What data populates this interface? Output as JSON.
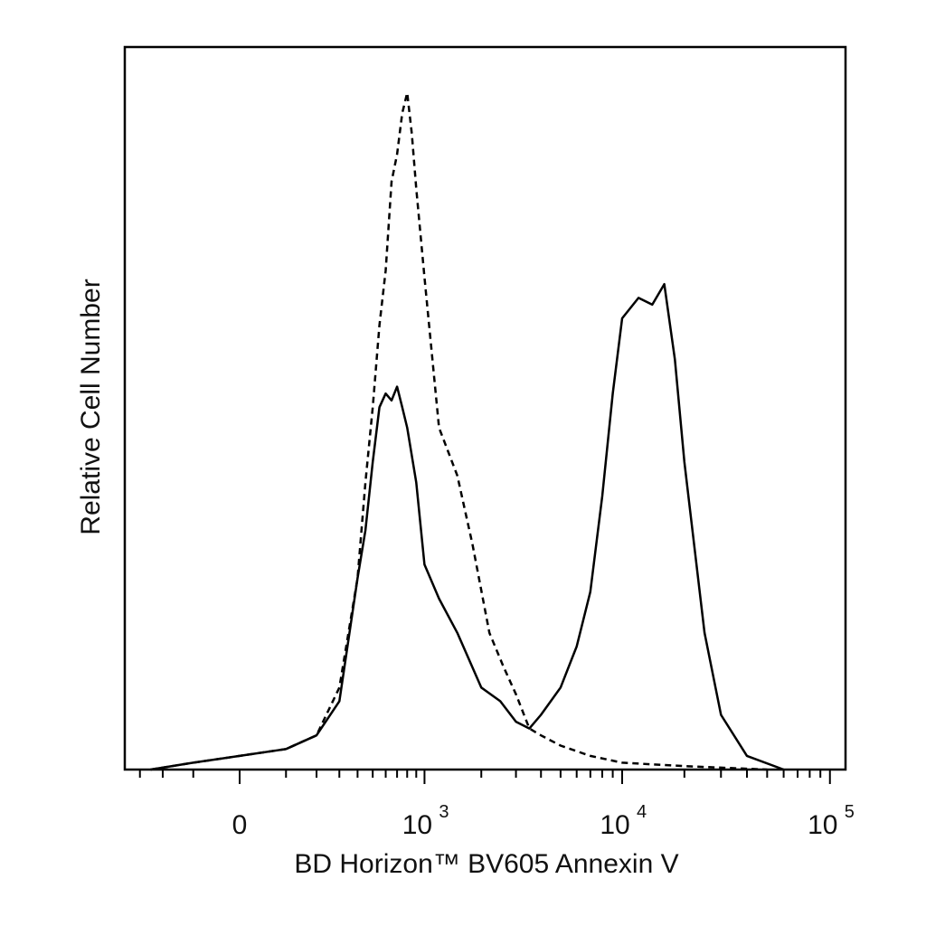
{
  "chart_data": {
    "type": "line",
    "title": "",
    "xlabel": "BD Horizon™ BV605 Annexin V",
    "ylabel": "Relative Cell Number",
    "x_scale": "biexponential",
    "x_tick_labels": [
      {
        "base": "0",
        "exp": "",
        "value": 0
      },
      {
        "base": "10",
        "exp": "3",
        "value": 1000
      },
      {
        "base": "10",
        "exp": "4",
        "value": 10000
      },
      {
        "base": "10",
        "exp": "5",
        "value": 100000
      }
    ],
    "xlim": [
      -800,
      200000
    ],
    "ylim": [
      0,
      100
    ],
    "grid": false,
    "legend": "none",
    "series": [
      {
        "style": "dashed",
        "x": [
          -250,
          -100,
          0,
          100,
          200,
          300,
          400,
          450,
          500,
          550,
          600,
          650,
          700,
          750,
          800,
          850,
          900,
          1000,
          1200,
          1500,
          1800,
          2200,
          2600,
          3000,
          3500,
          4000,
          5000,
          7000,
          10000,
          20000,
          50000
        ],
        "y": [
          0,
          1,
          2,
          3,
          5,
          12,
          28,
          42,
          53,
          65,
          73,
          86,
          90,
          96,
          99,
          93,
          85,
          72,
          50,
          43,
          33,
          20,
          15,
          11,
          6,
          5,
          3.5,
          2,
          1,
          0.5,
          0
        ]
      },
      {
        "style": "solid",
        "x": [
          -250,
          -100,
          0,
          100,
          200,
          300,
          400,
          450,
          500,
          550,
          600,
          650,
          700,
          750,
          800,
          900,
          1000,
          1200,
          1500,
          2000,
          2500,
          3000,
          3500,
          4000,
          5000,
          6000,
          7000,
          8000,
          9000,
          10000,
          12000,
          14000,
          16000,
          18000,
          20000,
          25000,
          30000,
          40000,
          60000
        ],
        "y": [
          0,
          1,
          2,
          3,
          5,
          10,
          28,
          35,
          45,
          53,
          55,
          54,
          56,
          53,
          50,
          42,
          30,
          25,
          20,
          12,
          10,
          7,
          6,
          8,
          12,
          18,
          26,
          40,
          55,
          66,
          69,
          68,
          71,
          60,
          45,
          20,
          8,
          2,
          0
        ]
      }
    ]
  }
}
